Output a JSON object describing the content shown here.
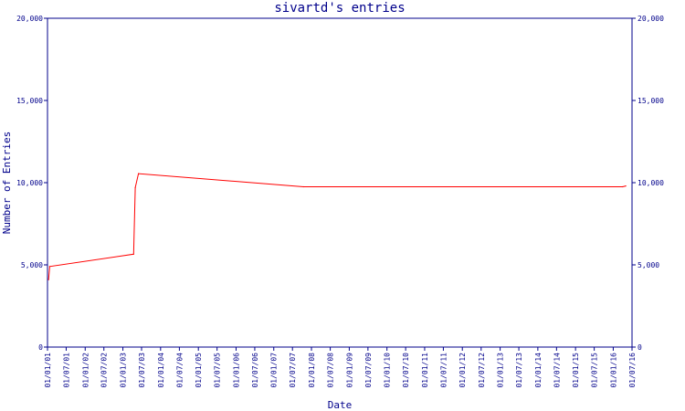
{
  "chart_data": {
    "type": "line",
    "title": "sivartd's entries",
    "xlabel": "Date",
    "ylabel": "Number of Entries",
    "ylim": [
      0,
      20000
    ],
    "yticks": [
      {
        "value": 0,
        "label": "0"
      },
      {
        "value": 5000,
        "label": "5,000"
      },
      {
        "value": 10000,
        "label": "10,000"
      },
      {
        "value": 15000,
        "label": "15,000"
      },
      {
        "value": 20000,
        "label": "20,000"
      }
    ],
    "xlim": [
      "2001-01-01",
      "2016-07-01"
    ],
    "xticks": [
      {
        "date": "2001-01-01",
        "label": "01/01/01"
      },
      {
        "date": "2001-07-01",
        "label": "01/07/01"
      },
      {
        "date": "2002-01-01",
        "label": "01/01/02"
      },
      {
        "date": "2002-07-01",
        "label": "01/07/02"
      },
      {
        "date": "2003-01-01",
        "label": "01/01/03"
      },
      {
        "date": "2003-07-01",
        "label": "01/07/03"
      },
      {
        "date": "2004-01-01",
        "label": "01/01/04"
      },
      {
        "date": "2004-07-01",
        "label": "01/07/04"
      },
      {
        "date": "2005-01-01",
        "label": "01/01/05"
      },
      {
        "date": "2005-07-01",
        "label": "01/07/05"
      },
      {
        "date": "2006-01-01",
        "label": "01/01/06"
      },
      {
        "date": "2006-07-01",
        "label": "01/07/06"
      },
      {
        "date": "2007-01-01",
        "label": "01/01/07"
      },
      {
        "date": "2007-07-01",
        "label": "01/07/07"
      },
      {
        "date": "2008-01-01",
        "label": "01/01/08"
      },
      {
        "date": "2008-07-01",
        "label": "01/07/08"
      },
      {
        "date": "2009-01-01",
        "label": "01/01/09"
      },
      {
        "date": "2009-07-01",
        "label": "01/07/09"
      },
      {
        "date": "2010-01-01",
        "label": "01/01/10"
      },
      {
        "date": "2010-07-01",
        "label": "01/07/10"
      },
      {
        "date": "2011-01-01",
        "label": "01/01/11"
      },
      {
        "date": "2011-07-01",
        "label": "01/07/11"
      },
      {
        "date": "2012-01-01",
        "label": "01/01/12"
      },
      {
        "date": "2012-07-01",
        "label": "01/07/12"
      },
      {
        "date": "2013-01-01",
        "label": "01/01/13"
      },
      {
        "date": "2013-07-01",
        "label": "01/07/13"
      },
      {
        "date": "2014-01-01",
        "label": "01/01/14"
      },
      {
        "date": "2014-07-01",
        "label": "01/07/14"
      },
      {
        "date": "2015-01-01",
        "label": "01/01/15"
      },
      {
        "date": "2015-07-01",
        "label": "01/07/15"
      },
      {
        "date": "2016-01-01",
        "label": "01/01/16"
      },
      {
        "date": "2016-07-01",
        "label": "01/07/16"
      }
    ],
    "series": [
      {
        "color": "#ff0000",
        "points": [
          {
            "x": "2001-01-12",
            "y": 4100
          },
          {
            "x": "2001-01-22",
            "y": 4900
          },
          {
            "x": "2003-04-15",
            "y": 5650
          },
          {
            "x": "2003-05-01",
            "y": 9700
          },
          {
            "x": "2003-06-01",
            "y": 10550
          },
          {
            "x": "2007-10-15",
            "y": 9750
          },
          {
            "x": "2016-04-01",
            "y": 9750
          },
          {
            "x": "2016-05-01",
            "y": 9800
          }
        ]
      }
    ],
    "grid": false,
    "axis_color": "#00008b"
  }
}
